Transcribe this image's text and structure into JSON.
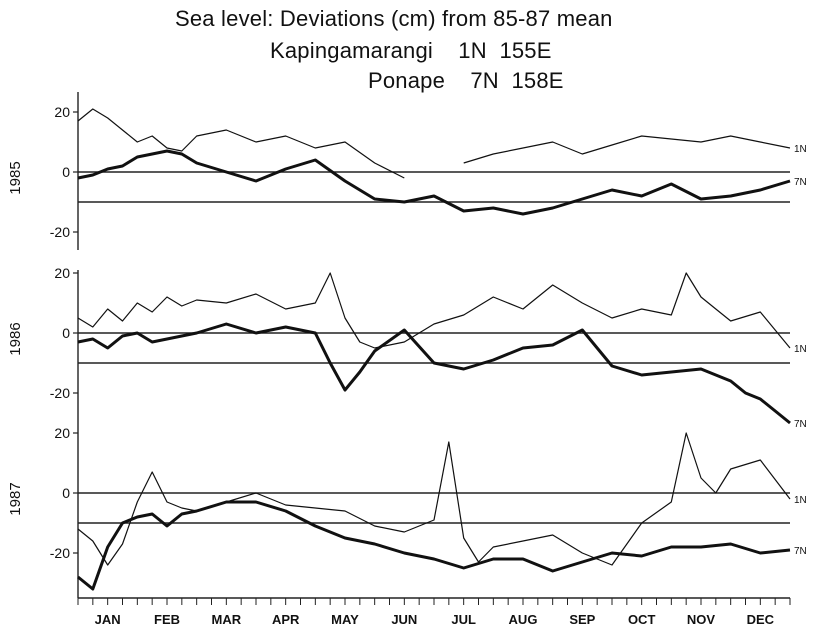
{
  "chart_data": {
    "type": "line",
    "title": "Sea level: Deviations (cm) from 85-87 mean",
    "subtitle": [
      {
        "station": "Kapingamarangi",
        "lat": "1N",
        "lon": "155E"
      },
      {
        "station": "Ponape",
        "lat": "7N",
        "lon": "158E"
      }
    ],
    "xlabel": "",
    "ylabel": "",
    "x_months": [
      "JAN",
      "FEB",
      "MAR",
      "APR",
      "MAY",
      "JUN",
      "JUL",
      "AUG",
      "SEP",
      "OCT",
      "NOV",
      "DEC"
    ],
    "ylim": [
      -30,
      25
    ],
    "yticks": [
      20,
      0,
      -20
    ],
    "ytick_labels": [
      "20",
      "0",
      "-20"
    ],
    "grid": false,
    "series_tags": {
      "kapinga": "1N",
      "ponape": "7N"
    },
    "panels": [
      {
        "year": "1985",
        "mean_lines": {
          "1N": 0,
          "7N": -10
        },
        "series": [
          {
            "name": "1N",
            "style": "thin",
            "x": [
              0,
              0.25,
              0.5,
              0.75,
              1,
              1.25,
              1.5,
              1.75,
              2,
              2.5,
              3,
              3.5,
              4,
              4.5,
              5,
              5.5,
              6,
              6.5,
              7,
              7.5,
              8,
              8.5,
              9,
              9.5,
              10,
              10.5,
              11,
              11.5,
              12
            ],
            "values": [
              17,
              21,
              18,
              14,
              10,
              12,
              8,
              7,
              12,
              14,
              10,
              12,
              8,
              10,
              3,
              -2,
              null,
              3,
              6,
              8,
              10,
              6,
              9,
              12,
              11,
              10,
              12,
              10,
              8
            ]
          },
          {
            "name": "7N",
            "style": "bold",
            "x": [
              0,
              0.25,
              0.5,
              0.75,
              1,
              1.25,
              1.5,
              1.75,
              2,
              2.5,
              3,
              3.5,
              4,
              4.5,
              5,
              5.5,
              6,
              6.5,
              7,
              7.5,
              8,
              8.5,
              9,
              9.5,
              10,
              10.5,
              11,
              11.5,
              12
            ],
            "values": [
              -2,
              -1,
              1,
              2,
              5,
              6,
              7,
              6,
              3,
              0,
              -3,
              1,
              4,
              -3,
              -9,
              -10,
              -8,
              -13,
              -12,
              -14,
              -12,
              -9,
              -6,
              -8,
              -4,
              -9,
              -8,
              -6,
              -3
            ]
          }
        ]
      },
      {
        "year": "1986",
        "mean_lines": {
          "1N": 0,
          "7N": -10
        },
        "series": [
          {
            "name": "1N",
            "style": "thin",
            "x": [
              0,
              0.25,
              0.5,
              0.75,
              1,
              1.25,
              1.5,
              1.75,
              2,
              2.5,
              3,
              3.5,
              4,
              4.25,
              4.5,
              4.75,
              5,
              5.5,
              6,
              6.5,
              7,
              7.5,
              8,
              8.5,
              9,
              9.5,
              10,
              10.25,
              10.5,
              10.75,
              11,
              11.5,
              12
            ],
            "values": [
              5,
              2,
              8,
              4,
              10,
              7,
              12,
              9,
              11,
              10,
              13,
              8,
              10,
              20,
              5,
              -3,
              -5,
              -3,
              3,
              6,
              12,
              8,
              16,
              10,
              5,
              8,
              6,
              20,
              12,
              8,
              4,
              7,
              -5
            ]
          },
          {
            "name": "7N",
            "style": "bold",
            "x": [
              0,
              0.25,
              0.5,
              0.75,
              1,
              1.25,
              1.5,
              1.75,
              2,
              2.5,
              3,
              3.5,
              4,
              4.25,
              4.5,
              4.75,
              5,
              5.5,
              6,
              6.5,
              7,
              7.5,
              8,
              8.5,
              9,
              9.5,
              10,
              10.5,
              11,
              11.25,
              11.5,
              11.75,
              12
            ],
            "values": [
              -3,
              -2,
              -5,
              -1,
              0,
              -3,
              -2,
              -1,
              0,
              3,
              0,
              2,
              0,
              -10,
              -19,
              -13,
              -6,
              1,
              -10,
              -12,
              -9,
              -5,
              -4,
              1,
              -11,
              -14,
              -13,
              -12,
              -16,
              -20,
              -22,
              -26,
              -30
            ]
          }
        ]
      },
      {
        "year": "1987",
        "mean_lines": {
          "1N": 0,
          "7N": -10
        },
        "series": [
          {
            "name": "1N",
            "style": "thin",
            "x": [
              0,
              0.25,
              0.5,
              0.75,
              1,
              1.25,
              1.5,
              1.75,
              2,
              2.5,
              3,
              3.5,
              4,
              4.5,
              5,
              5.5,
              6,
              6.25,
              6.5,
              6.75,
              7,
              7.5,
              8,
              8.5,
              9,
              9.5,
              10,
              10.25,
              10.5,
              10.75,
              11,
              11.5,
              12
            ],
            "values": [
              -12,
              -16,
              -24,
              -17,
              -3,
              7,
              -3,
              -5,
              -6,
              -3,
              0,
              -4,
              -5,
              -6,
              -11,
              -13,
              -9,
              17,
              -15,
              -23,
              -18,
              -16,
              -14,
              -20,
              -24,
              -10,
              -3,
              20,
              5,
              0,
              8,
              11,
              -2
            ]
          },
          {
            "name": "7N",
            "style": "bold",
            "x": [
              0,
              0.25,
              0.5,
              0.75,
              1,
              1.25,
              1.5,
              1.75,
              2,
              2.5,
              3,
              3.5,
              4,
              4.5,
              5,
              5.5,
              6,
              6.5,
              7,
              7.5,
              8,
              8.5,
              9,
              9.5,
              10,
              10.5,
              11,
              11.5,
              12
            ],
            "values": [
              -28,
              -32,
              -18,
              -10,
              -8,
              -7,
              -11,
              -7,
              -6,
              -3,
              -3,
              -6,
              -11,
              -15,
              -17,
              -20,
              -22,
              -25,
              -22,
              -22,
              -26,
              -23,
              -20,
              -21,
              -18,
              -18,
              -17,
              -20,
              -19
            ]
          }
        ]
      }
    ]
  }
}
